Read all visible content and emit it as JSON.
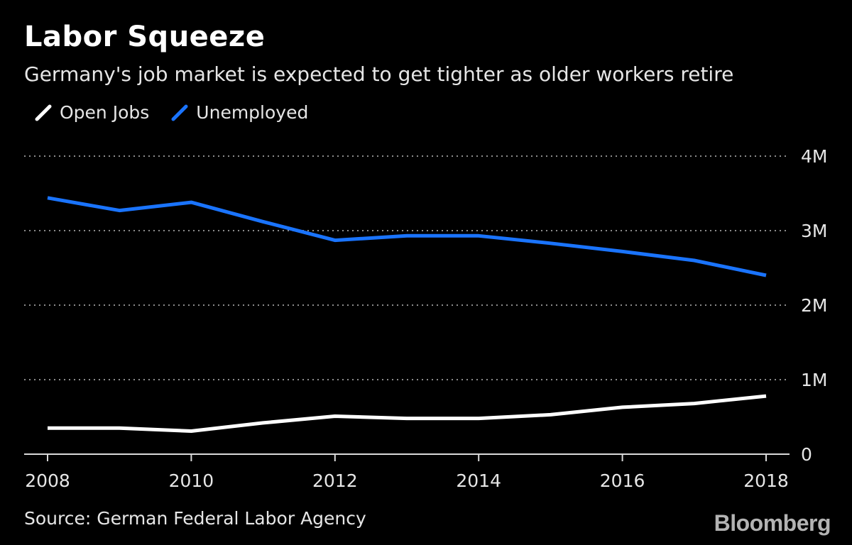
{
  "header": {
    "title": "Labor Squeeze",
    "subtitle": "Germany's job market is expected to get tighter as older workers retire"
  },
  "legend": [
    {
      "label": "Open Jobs",
      "color": "#ffffff"
    },
    {
      "label": "Unemployed",
      "color": "#1a74ff"
    }
  ],
  "footer": {
    "source": "Source: German Federal Labor Agency",
    "logo": "Bloomberg"
  },
  "chart_data": {
    "type": "line",
    "title": "Labor Squeeze",
    "subtitle": "Germany's job market is expected to get tighter as older workers retire",
    "x": [
      2008,
      2009,
      2010,
      2011,
      2012,
      2013,
      2014,
      2015,
      2016,
      2017,
      2018
    ],
    "series": [
      {
        "name": "Open Jobs",
        "color": "#ffffff",
        "values": [
          0.35,
          0.35,
          0.31,
          0.42,
          0.51,
          0.48,
          0.48,
          0.53,
          0.63,
          0.68,
          0.78
        ]
      },
      {
        "name": "Unemployed",
        "color": "#1a74ff",
        "values": [
          3.44,
          3.27,
          3.38,
          3.12,
          2.87,
          2.93,
          2.93,
          2.83,
          2.72,
          2.6,
          2.4
        ]
      }
    ],
    "xticks": [
      "2008",
      "2010",
      "2012",
      "2014",
      "2016",
      "2018"
    ],
    "xtick_values": [
      2008,
      2010,
      2012,
      2014,
      2016,
      2018
    ],
    "yticks": [
      "0",
      "1M",
      "2M",
      "3M",
      "4M"
    ],
    "ytick_values": [
      0,
      1,
      2,
      3,
      4
    ],
    "ylim": [
      0,
      4
    ],
    "xlim": [
      2008,
      2018
    ],
    "grid": true,
    "legend_position": "top-left"
  }
}
